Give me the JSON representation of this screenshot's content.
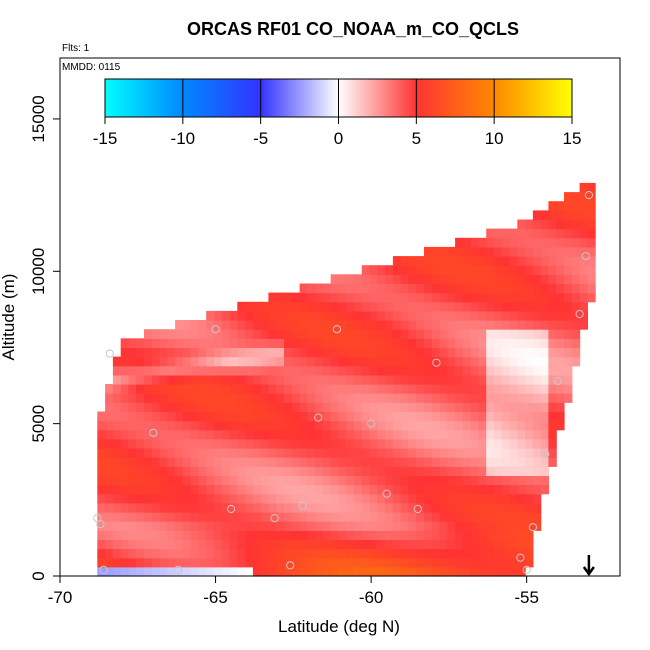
{
  "chart_data": {
    "type": "heatmap",
    "title": "ORCAS RF01 CO_NOAA_m_CO_QCLS",
    "notes": {
      "flights": "Flts: 1",
      "date": "MMDD: 0115"
    },
    "xlabel": "Latitude (deg N)",
    "ylabel": "Altitude (m)",
    "xlim": [
      -70,
      -52
    ],
    "ylim": [
      0,
      17000
    ],
    "xticks": [
      -70,
      -65,
      -60,
      -55
    ],
    "xtick_labels": [
      "-70",
      "-65",
      "-60",
      "-55"
    ],
    "yticks": [
      0,
      5000,
      10000,
      15000
    ],
    "ytick_labels": [
      "0",
      "5000",
      "10000",
      "15000"
    ],
    "colorbar": {
      "range": [
        -15,
        15
      ],
      "ticks": [
        -15,
        -10,
        -5,
        0,
        5,
        10,
        15
      ],
      "tick_labels": [
        "-15",
        "-10",
        "-5",
        "0",
        "5",
        "10",
        "15"
      ],
      "stops": [
        {
          "v": -15,
          "color": "#00ffff"
        },
        {
          "v": -10,
          "color": "#0088ff"
        },
        {
          "v": -5,
          "color": "#3333ff"
        },
        {
          "v": 0,
          "color": "#ffffff"
        },
        {
          "v": 5,
          "color": "#ff3333"
        },
        {
          "v": 10,
          "color": "#ff8800"
        },
        {
          "v": 15,
          "color": "#ffff00"
        }
      ]
    },
    "field": {
      "lat_range": [
        -68.8,
        -53.0
      ],
      "lat_step": 0.25,
      "alt_step": 300,
      "top_boundary": [
        [
          -68.8,
          4800
        ],
        [
          -68.0,
          7600
        ],
        [
          -66.0,
          8200
        ],
        [
          -60.0,
          10000
        ],
        [
          -55.0,
          11500
        ],
        [
          -53.0,
          12800
        ]
      ],
      "bottom_boundary": [
        [
          -68.8,
          0
        ],
        [
          -55.0,
          0
        ],
        [
          -54.5,
          2500
        ],
        [
          -54.0,
          4500
        ],
        [
          -53.0,
          9000
        ]
      ]
    },
    "flight_points": [
      {
        "lat": -68.4,
        "alt": 7300
      },
      {
        "lat": -67.0,
        "alt": 4700
      },
      {
        "lat": -65.0,
        "alt": 8100
      },
      {
        "lat": -61.1,
        "alt": 8100
      },
      {
        "lat": -61.7,
        "alt": 5200
      },
      {
        "lat": -60.0,
        "alt": 5000
      },
      {
        "lat": -57.9,
        "alt": 7000
      },
      {
        "lat": -54.0,
        "alt": 6400
      },
      {
        "lat": -53.1,
        "alt": 10500
      },
      {
        "lat": -53.3,
        "alt": 8600
      },
      {
        "lat": -54.4,
        "alt": 4000
      },
      {
        "lat": -59.5,
        "alt": 2700
      },
      {
        "lat": -58.5,
        "alt": 2200
      },
      {
        "lat": -62.2,
        "alt": 2300
      },
      {
        "lat": -63.1,
        "alt": 1900
      },
      {
        "lat": -64.5,
        "alt": 2200
      },
      {
        "lat": -68.8,
        "alt": 1900
      },
      {
        "lat": -68.7,
        "alt": 1700
      },
      {
        "lat": -66.2,
        "alt": 200
      },
      {
        "lat": -62.6,
        "alt": 350
      },
      {
        "lat": -68.6,
        "alt": 200
      },
      {
        "lat": -54.8,
        "alt": 1600
      },
      {
        "lat": -55.2,
        "alt": 600
      },
      {
        "lat": -55.0,
        "alt": 200
      },
      {
        "lat": -53.0,
        "alt": 12500
      }
    ],
    "arrow_marker": {
      "lat": -53.0,
      "direction": "down"
    }
  }
}
